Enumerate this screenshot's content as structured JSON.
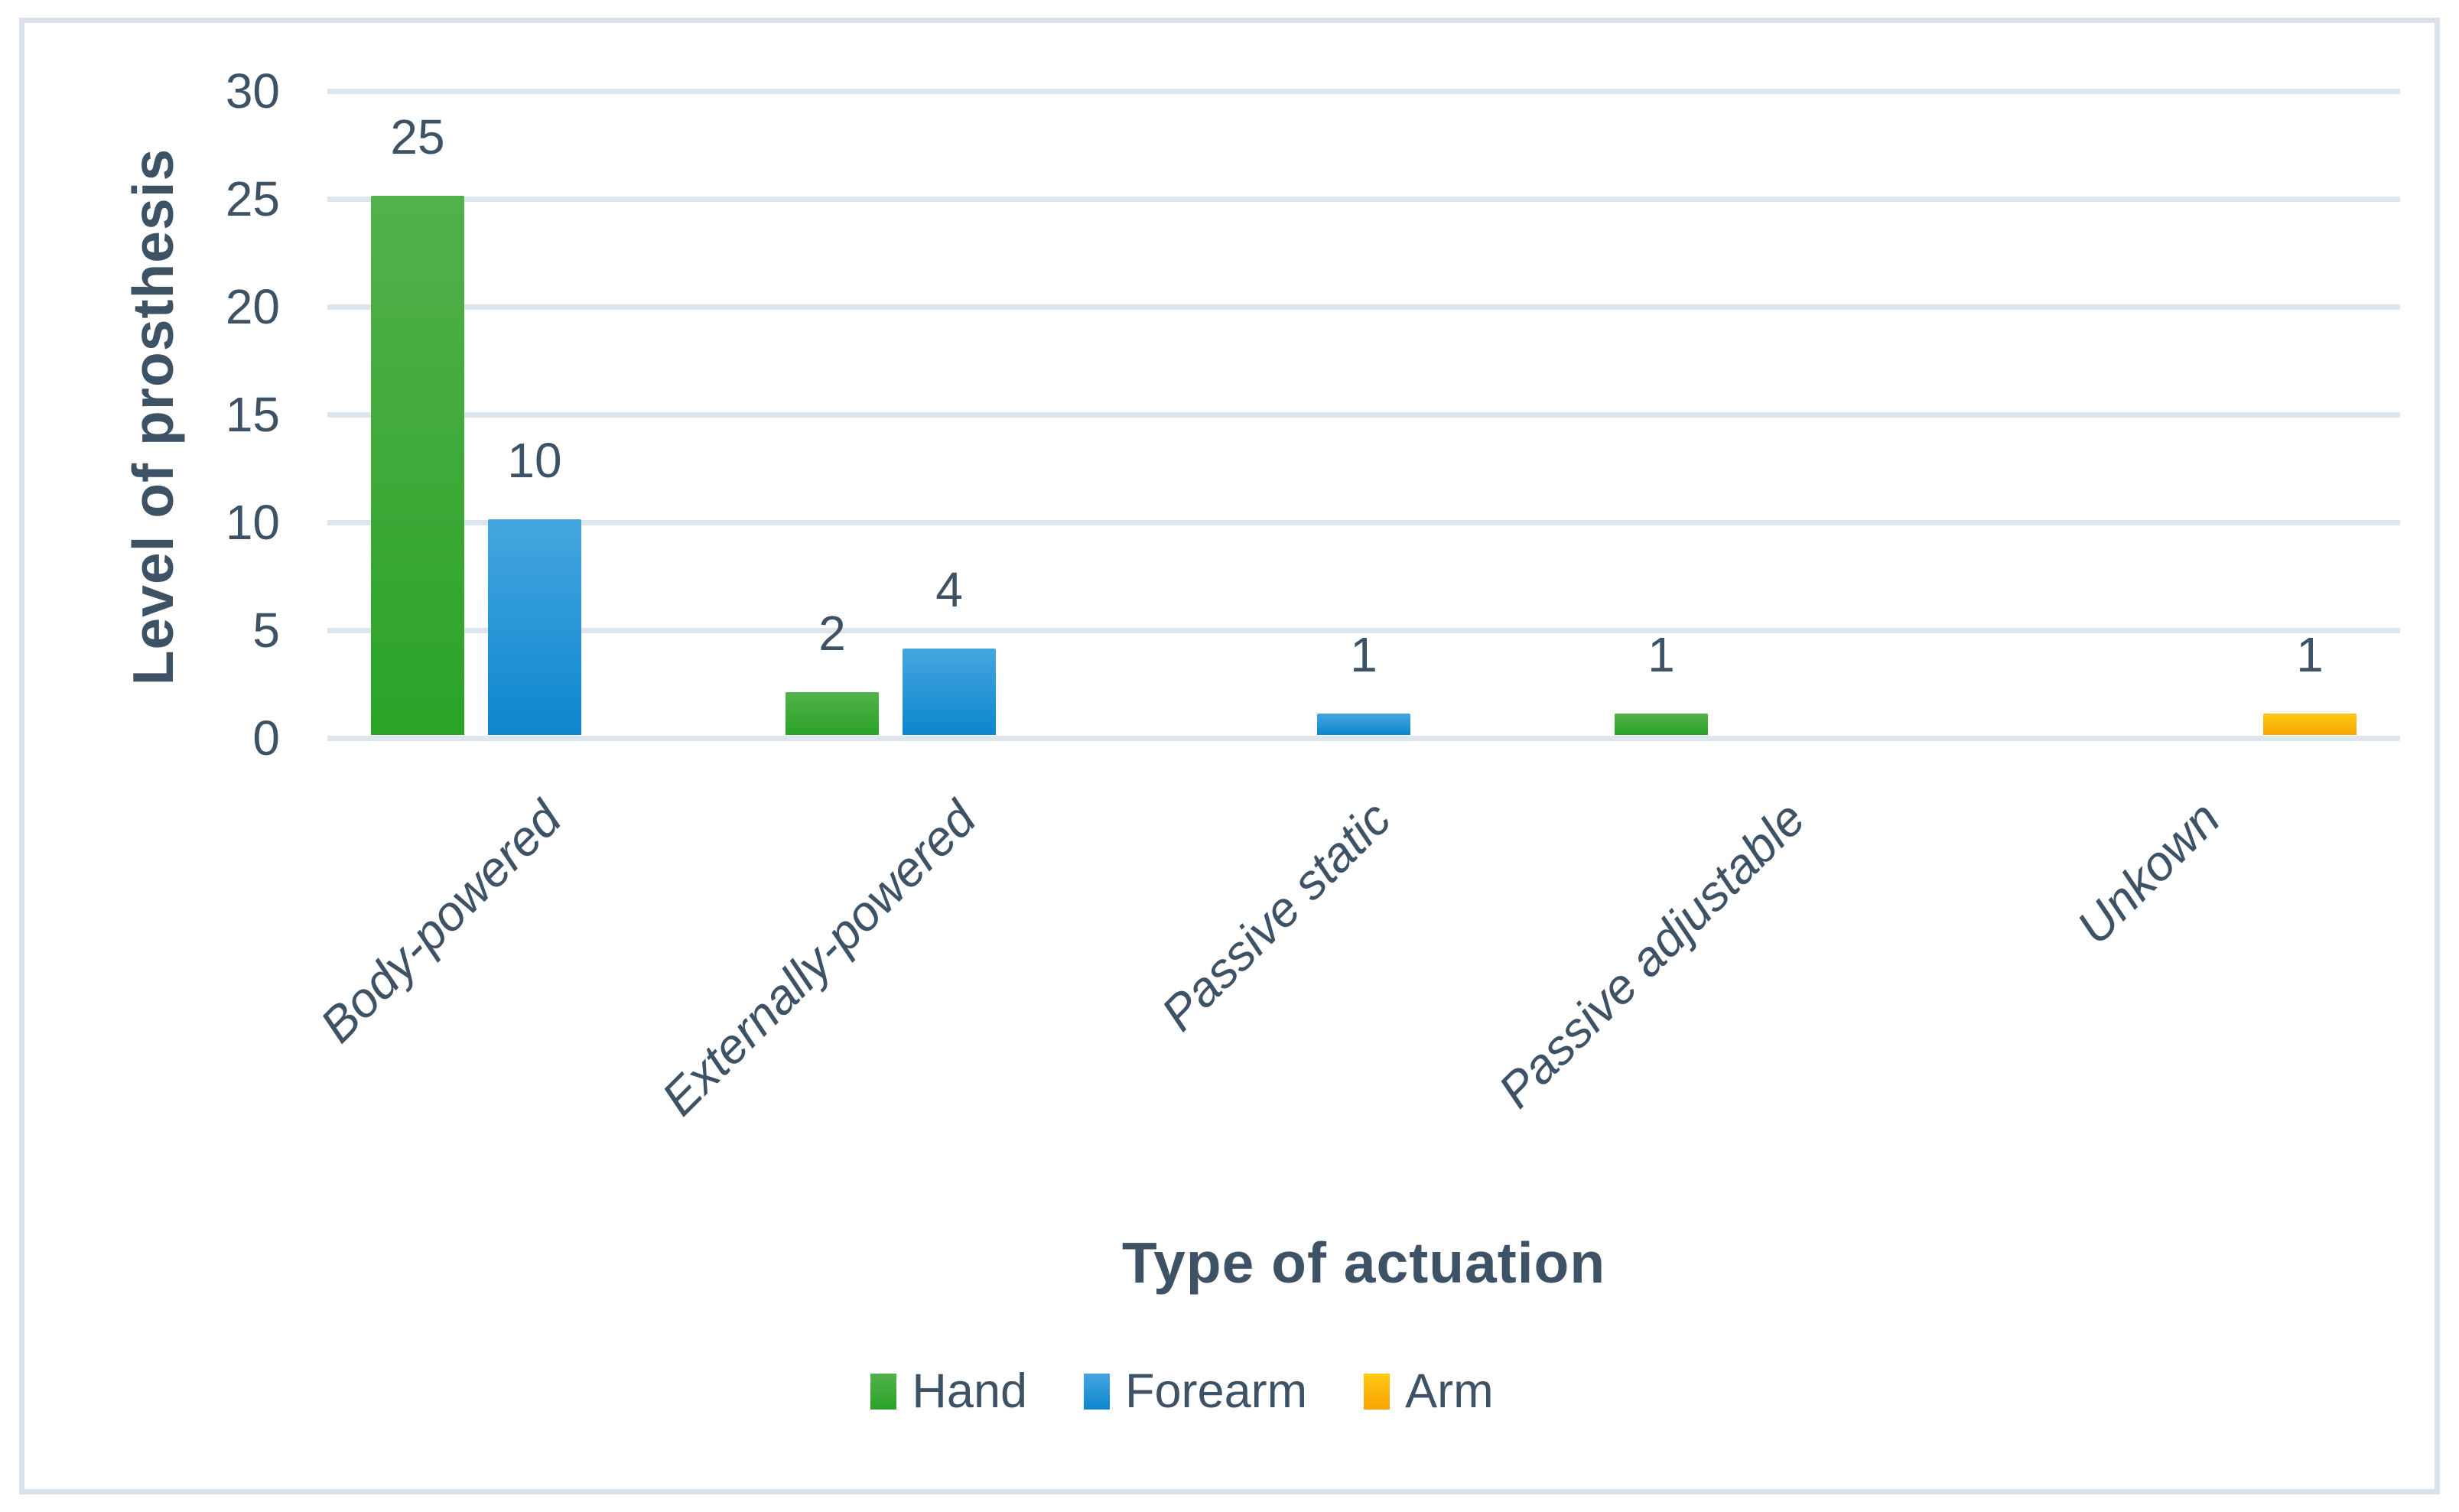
{
  "chart_data": {
    "type": "bar",
    "title": "",
    "xlabel": "Type of actuation",
    "ylabel": "Level of prosthesis",
    "categories": [
      "Body-powered",
      "Externally-powered",
      "Passive static",
      "Passive adjustable",
      "Unkown"
    ],
    "series": [
      {
        "name": "Hand",
        "color_top": "#53B14B",
        "color_bottom": "#2AA327",
        "values": [
          25,
          2,
          null,
          1,
          null
        ]
      },
      {
        "name": "Forearm",
        "color_top": "#45A6DF",
        "color_bottom": "#0C86CE",
        "values": [
          10,
          4,
          1,
          null,
          null
        ]
      },
      {
        "name": "Arm",
        "color_top": "#FFC915",
        "color_bottom": "#F7A500",
        "values": [
          null,
          null,
          null,
          null,
          1
        ]
      }
    ],
    "data_labels": {
      "Body-powered": {
        "Hand": "25",
        "Forearm": "10"
      },
      "Externally-powered": {
        "Hand": "2",
        "Forearm": "4"
      },
      "Passive static": {
        "Forearm": "1"
      },
      "Passive adjustable": {
        "Hand": "1"
      },
      "Unkown": {
        "Arm": "1"
      }
    },
    "yticks": [
      0,
      5,
      10,
      15,
      20,
      25,
      30
    ],
    "ylim": [
      0,
      30
    ],
    "grid": "horizontal",
    "legend_position": "bottom",
    "text_color": "#3E5266",
    "gridline_color": "#DFE5EC",
    "frame_border_color": "#D9E0E9"
  }
}
